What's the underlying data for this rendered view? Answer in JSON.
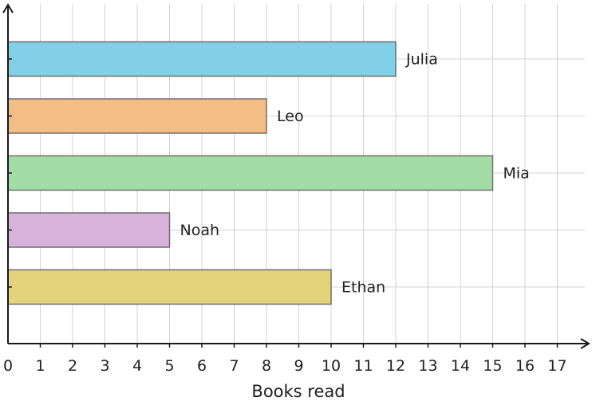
{
  "chart_data": {
    "type": "bar",
    "orientation": "horizontal",
    "title": "",
    "xlabel": "Books read",
    "ylabel": "",
    "xlim": [
      0,
      17.8
    ],
    "xticks": [
      0,
      1,
      2,
      3,
      4,
      5,
      6,
      7,
      8,
      9,
      10,
      11,
      12,
      13,
      14,
      15,
      16,
      17
    ],
    "grid": true,
    "legend": "none",
    "bars": [
      {
        "category": "Julia",
        "value": 12,
        "color": "#82cfe8"
      },
      {
        "category": "Leo",
        "value": 8,
        "color": "#f5bd86"
      },
      {
        "category": "Mia",
        "value": 15,
        "color": "#a2dda6"
      },
      {
        "category": "Noah",
        "value": 5,
        "color": "#d7b3dc"
      },
      {
        "category": "Ethan",
        "value": 10,
        "color": "#e4d37a"
      }
    ]
  }
}
